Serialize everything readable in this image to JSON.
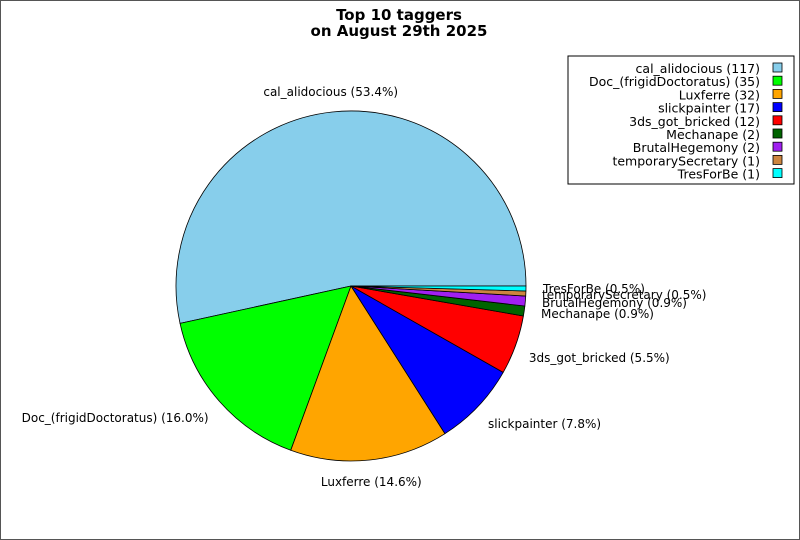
{
  "chart_data": {
    "type": "pie",
    "title_lines": [
      "Top 10 taggers",
      "on August 29th 2025"
    ],
    "legend_position": "top-right",
    "slices": [
      {
        "name": "cal_alidocious",
        "count": 117,
        "percent": 53.4,
        "color": "#87ceeb",
        "legend_text": "cal_alidocious (117)",
        "label_text": "cal_alidocious (53.4%)"
      },
      {
        "name": "Doc_(frigidDoctoratus)",
        "count": 35,
        "percent": 16.0,
        "color": "#00ff00",
        "legend_text": "Doc_(frigidDoctoratus) (35)",
        "label_text": "Doc_(frigidDoctoratus) (16.0%)"
      },
      {
        "name": "Luxferre",
        "count": 32,
        "percent": 14.6,
        "color": "#ffa500",
        "legend_text": "Luxferre (32)",
        "label_text": "Luxferre (14.6%)"
      },
      {
        "name": "slickpainter",
        "count": 17,
        "percent": 7.8,
        "color": "#0000ff",
        "legend_text": "slickpainter (17)",
        "label_text": "slickpainter (7.8%)"
      },
      {
        "name": "3ds_got_bricked",
        "count": 12,
        "percent": 5.5,
        "color": "#ff0000",
        "legend_text": "3ds_got_bricked (12)",
        "label_text": "3ds_got_bricked (5.5%)"
      },
      {
        "name": "Mechanape",
        "count": 2,
        "percent": 0.9,
        "color": "#006400",
        "legend_text": "Mechanape (2)",
        "label_text": "Mechanape (0.9%)"
      },
      {
        "name": "BrutalHegemony",
        "count": 2,
        "percent": 0.9,
        "color": "#a020f0",
        "legend_text": "BrutalHegemony (2)",
        "label_text": "BrutalHegemony (0.9%)"
      },
      {
        "name": "temporarySecretary",
        "count": 1,
        "percent": 0.5,
        "color": "#cd853f",
        "legend_text": "temporarySecretary (1)",
        "label_text": "temporarySecretary (0.5%)"
      },
      {
        "name": "TresForBe",
        "count": 1,
        "percent": 0.5,
        "color": "#00ffff",
        "legend_text": "TresForBe (1)",
        "label_text": "TresForBe (0.5%)"
      }
    ]
  }
}
